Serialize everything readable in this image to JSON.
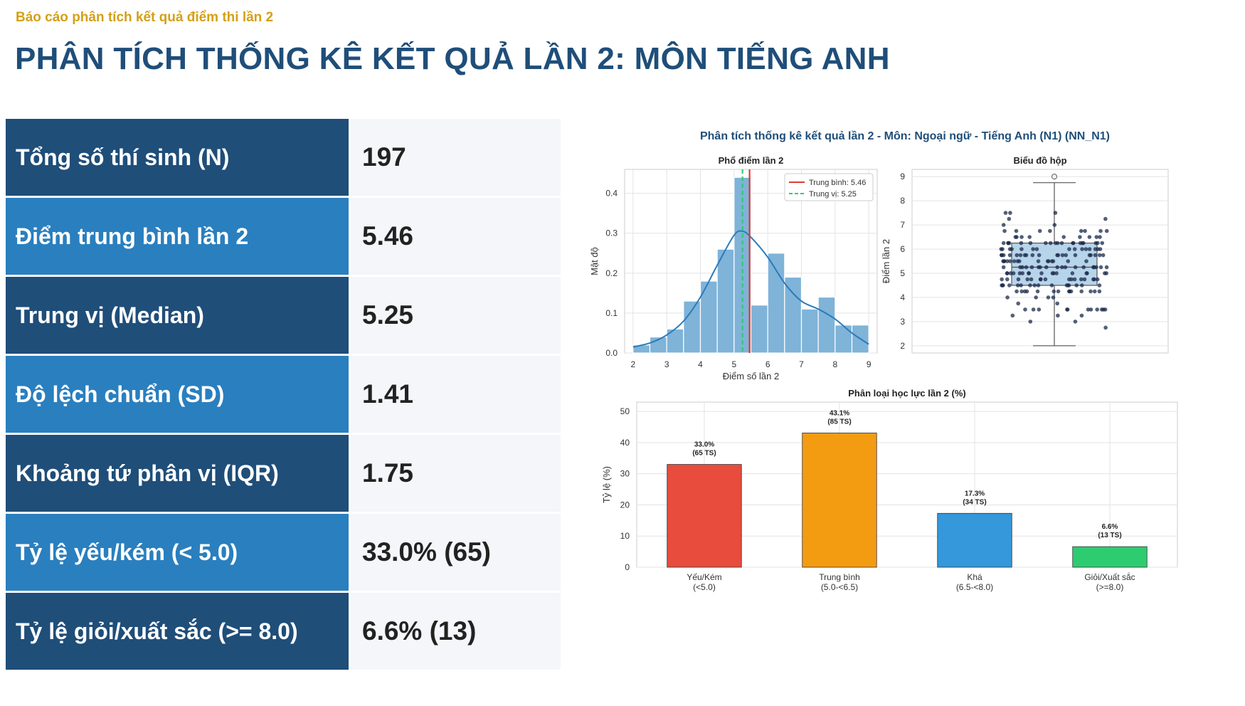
{
  "header": {
    "kicker": "Báo cáo phân tích kết quả điểm thi lần 2",
    "title": "PHÂN TÍCH THỐNG KÊ KẾT QUẢ LẦN 2: MÔN TIẾNG ANH"
  },
  "stats": [
    {
      "label": "Tổng số thí sinh (N)",
      "value": "197"
    },
    {
      "label": "Điểm trung bình lần 2",
      "value": "5.46"
    },
    {
      "label": "Trung vị (Median)",
      "value": "5.25"
    },
    {
      "label": "Độ lệch chuẩn (SD)",
      "value": "1.41"
    },
    {
      "label": "Khoảng tứ phân vị (IQR)",
      "value": "1.75"
    },
    {
      "label": "Tỷ lệ yếu/kém (< 5.0)",
      "value": "33.0% (65)"
    },
    {
      "label": "Tỷ lệ giỏi/xuất sắc (>= 8.0)",
      "value": "6.6% (13)"
    }
  ],
  "colors": {
    "header_dark": "#1f4e79",
    "header_light": "#2a7fbf",
    "kicker": "#d4a017",
    "hist_bar": "#7fb3d8",
    "kde": "#2b7bba",
    "mean_line": "#e03c31",
    "median_line": "#2ecc71",
    "box": "#a9cde6",
    "points": "#1b2a4a",
    "weak": "#e74c3c",
    "average": "#f39c12",
    "good": "#3498db",
    "excellent": "#2ecc71"
  },
  "figure_title": "Phân tích thống kê kết quả lần 2 - Môn: Ngoại ngữ - Tiếng Anh (N1) (NN_N1)",
  "chart_data": [
    {
      "type": "bar",
      "title": "Phổ điểm lần 2",
      "xlabel": "Điểm số lần 2",
      "ylabel": "Mật độ",
      "xlim": [
        1.75,
        9.25
      ],
      "ylim": [
        0,
        0.46
      ],
      "x_ticks": [
        2,
        3,
        4,
        5,
        6,
        7,
        8,
        9
      ],
      "y_ticks": [
        0.0,
        0.1,
        0.2,
        0.3,
        0.4
      ],
      "bin_edges": [
        2.0,
        2.5,
        3.0,
        3.5,
        4.0,
        4.5,
        5.0,
        5.5,
        6.0,
        6.5,
        7.0,
        7.5,
        8.0,
        8.5,
        9.0
      ],
      "density": [
        0.02,
        0.04,
        0.06,
        0.13,
        0.18,
        0.26,
        0.44,
        0.12,
        0.25,
        0.19,
        0.11,
        0.14,
        0.07,
        0.07,
        0.02
      ],
      "kde": {
        "x": [
          2.0,
          2.5,
          3.0,
          3.5,
          4.0,
          4.5,
          5.0,
          5.25,
          5.5,
          6.0,
          6.5,
          7.0,
          7.5,
          8.0,
          8.5,
          9.0
        ],
        "y": [
          0.015,
          0.025,
          0.045,
          0.08,
          0.14,
          0.22,
          0.295,
          0.305,
          0.29,
          0.24,
          0.175,
          0.13,
          0.11,
          0.085,
          0.05,
          0.022
        ]
      },
      "mean": 5.46,
      "median": 5.25,
      "legend": [
        "Trung bình: 5.46",
        "Trung vị: 5.25"
      ],
      "legend_position": "top-right",
      "grid": true
    },
    {
      "type": "box",
      "title": "Biểu đồ hộp",
      "ylabel": "Điểm lần 2",
      "ylim": [
        1.7,
        9.3
      ],
      "y_ticks": [
        2,
        3,
        4,
        5,
        6,
        7,
        8,
        9
      ],
      "whisker_low": 2.0,
      "q1": 4.5,
      "median": 5.25,
      "q3": 6.25,
      "whisker_high": 8.75,
      "outliers": [
        9.0
      ],
      "grid": true
    },
    {
      "type": "bar",
      "title": "Phân loại học lực lần 2 (%)",
      "ylabel": "Tỷ lệ (%)",
      "ylim": [
        0,
        53
      ],
      "y_ticks": [
        0,
        10,
        20,
        30,
        40,
        50
      ],
      "categories": [
        [
          "Yếu/Kém",
          "(<5.0)"
        ],
        [
          "Trung bình",
          "(5.0-<6.5)"
        ],
        [
          "Khá",
          "(6.5-<8.0)"
        ],
        [
          "Giỏi/Xuất sắc",
          "(>=8.0)"
        ]
      ],
      "values": [
        33.0,
        43.1,
        17.3,
        6.6
      ],
      "data_labels": [
        [
          "33.0%",
          "(65 TS)"
        ],
        [
          "43.1%",
          "(85 TS)"
        ],
        [
          "17.3%",
          "(34 TS)"
        ],
        [
          "6.6%",
          "(13 TS)"
        ]
      ],
      "colors": [
        "#e74c3c",
        "#f39c12",
        "#3498db",
        "#2ecc71"
      ],
      "grid": true
    }
  ]
}
